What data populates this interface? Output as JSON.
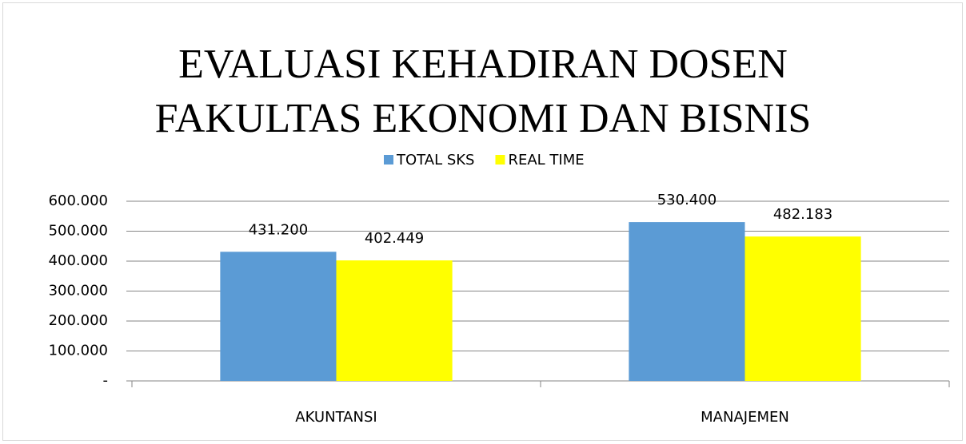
{
  "chart_data": {
    "type": "bar",
    "title": [
      "EVALUASI KEHADIRAN DOSEN",
      "FAKULTAS EKONOMI DAN BISNIS"
    ],
    "categories": [
      "AKUNTANSI",
      "MANAJEMEN"
    ],
    "series": [
      {
        "name": "TOTAL SKS",
        "color": "#5b9bd5",
        "values": [
          431200,
          530400
        ],
        "value_labels": [
          "431.200",
          "530.400"
        ]
      },
      {
        "name": "REAL TIME",
        "color": "#ffff00",
        "values": [
          402449,
          482183
        ],
        "value_labels": [
          "402.449",
          "482.183"
        ]
      }
    ],
    "ylim": [
      0,
      600000
    ],
    "yticks": [
      {
        "value": 0,
        "label": "-"
      },
      {
        "value": 100000,
        "label": "100.000"
      },
      {
        "value": 200000,
        "label": "200.000"
      },
      {
        "value": 300000,
        "label": "300.000"
      },
      {
        "value": 400000,
        "label": "400.000"
      },
      {
        "value": 500000,
        "label": "500.000"
      },
      {
        "value": 600000,
        "label": "600.000"
      }
    ],
    "grid": true,
    "legend": "top"
  }
}
